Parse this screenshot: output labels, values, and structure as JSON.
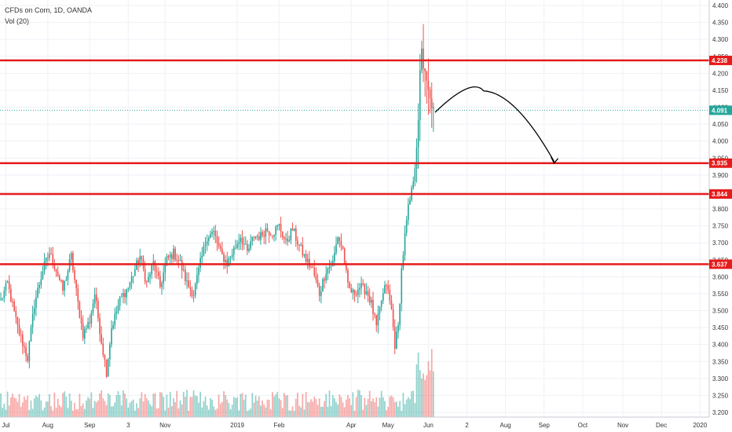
{
  "header": {
    "symbol_line": "CFDs on Corn, 1D, OANDA",
    "volume_line": "Vol (20)"
  },
  "colors": {
    "up": "#26a69a",
    "down": "#ef5350",
    "level_line": "#e51c1c",
    "current_price": "#26a69a",
    "grid": "#eef1f6"
  },
  "chart_data": {
    "type": "candlestick",
    "symbol": "CFDs on Corn",
    "interval": "1D",
    "source": "OANDA",
    "ylim": [
      3.2,
      4.4
    ],
    "y_ticks": [
      "4.400",
      "4.350",
      "4.300",
      "4.250",
      "4.200",
      "4.150",
      "4.100",
      "4.050",
      "4.000",
      "3.950",
      "3.900",
      "3.850",
      "3.800",
      "3.750",
      "3.700",
      "3.650",
      "3.600",
      "3.550",
      "3.500",
      "3.450",
      "3.400",
      "3.350",
      "3.300",
      "3.250",
      "3.200"
    ],
    "x_labels": [
      {
        "label": "Jul",
        "index": 3
      },
      {
        "label": "Aug",
        "index": 28
      },
      {
        "label": "Sep",
        "index": 53
      },
      {
        "label": "3",
        "index": 76
      },
      {
        "label": "Nov",
        "index": 98
      },
      {
        "label": "2019",
        "index": 141
      },
      {
        "label": "Feb",
        "index": 166
      },
      {
        "label": "Apr",
        "index": 209
      },
      {
        "label": "May",
        "index": 231
      },
      {
        "label": "Jun",
        "index": 255
      },
      {
        "label": "2",
        "index": 278
      },
      {
        "label": "Aug",
        "index": 301
      },
      {
        "label": "Sep",
        "index": 324
      },
      {
        "label": "Oct",
        "index": 347
      },
      {
        "label": "Nov",
        "index": 371
      },
      {
        "label": "Dec",
        "index": 394
      },
      {
        "label": "2020",
        "index": 417
      }
    ],
    "total_slots": 423,
    "anchors": [
      [
        0,
        3.53
      ],
      [
        4,
        3.58
      ],
      [
        10,
        3.45
      ],
      [
        16,
        3.36
      ],
      [
        20,
        3.52
      ],
      [
        25,
        3.62
      ],
      [
        29,
        3.67
      ],
      [
        33,
        3.62
      ],
      [
        37,
        3.56
      ],
      [
        42,
        3.66
      ],
      [
        46,
        3.52
      ],
      [
        49,
        3.43
      ],
      [
        53,
        3.47
      ],
      [
        56,
        3.55
      ],
      [
        60,
        3.41
      ],
      [
        63,
        3.32
      ],
      [
        66,
        3.45
      ],
      [
        71,
        3.53
      ],
      [
        76,
        3.57
      ],
      [
        83,
        3.66
      ],
      [
        87,
        3.58
      ],
      [
        91,
        3.64
      ],
      [
        95,
        3.57
      ],
      [
        99,
        3.65
      ],
      [
        103,
        3.67
      ],
      [
        107,
        3.64
      ],
      [
        111,
        3.58
      ],
      [
        115,
        3.55
      ],
      [
        119,
        3.64
      ],
      [
        123,
        3.72
      ],
      [
        127,
        3.73
      ],
      [
        131,
        3.67
      ],
      [
        135,
        3.64
      ],
      [
        139,
        3.68
      ],
      [
        143,
        3.72
      ],
      [
        147,
        3.67
      ],
      [
        151,
        3.72
      ],
      [
        155,
        3.72
      ],
      [
        158,
        3.74
      ],
      [
        162,
        3.73
      ],
      [
        166,
        3.75
      ],
      [
        170,
        3.7
      ],
      [
        174,
        3.74
      ],
      [
        178,
        3.69
      ],
      [
        182,
        3.65
      ],
      [
        186,
        3.62
      ],
      [
        190,
        3.55
      ],
      [
        194,
        3.62
      ],
      [
        198,
        3.64
      ],
      [
        201,
        3.72
      ],
      [
        204,
        3.68
      ],
      [
        207,
        3.57
      ],
      [
        210,
        3.55
      ],
      [
        214,
        3.57
      ],
      [
        218,
        3.56
      ],
      [
        221,
        3.52
      ],
      [
        224,
        3.45
      ],
      [
        227,
        3.53
      ],
      [
        230,
        3.58
      ],
      [
        233,
        3.5
      ],
      [
        235,
        3.4
      ],
      [
        237,
        3.45
      ],
      [
        239,
        3.62
      ],
      [
        241,
        3.72
      ],
      [
        243,
        3.8
      ],
      [
        245,
        3.85
      ],
      [
        247,
        3.93
      ],
      [
        249,
        4.05
      ],
      [
        250,
        4.2
      ],
      [
        251,
        4.28
      ],
      [
        252,
        4.22
      ],
      [
        254,
        4.17
      ],
      [
        256,
        4.12
      ],
      [
        258,
        4.09
      ]
    ],
    "volume_ylim": [
      0,
      14000
    ],
    "levels": [
      {
        "value": 4.238,
        "label": "4.238"
      },
      {
        "value": 3.935,
        "label": "3.935"
      },
      {
        "value": 3.844,
        "label": "3.844"
      },
      {
        "value": 3.637,
        "label": "3.637"
      }
    ],
    "current_price": {
      "value": 4.091,
      "label": "4.091"
    },
    "projection": {
      "start": {
        "index": 259,
        "price": 4.085
      },
      "peak": {
        "index": 288,
        "price": 4.148
      },
      "end": {
        "index": 330,
        "price": 3.935
      }
    }
  }
}
